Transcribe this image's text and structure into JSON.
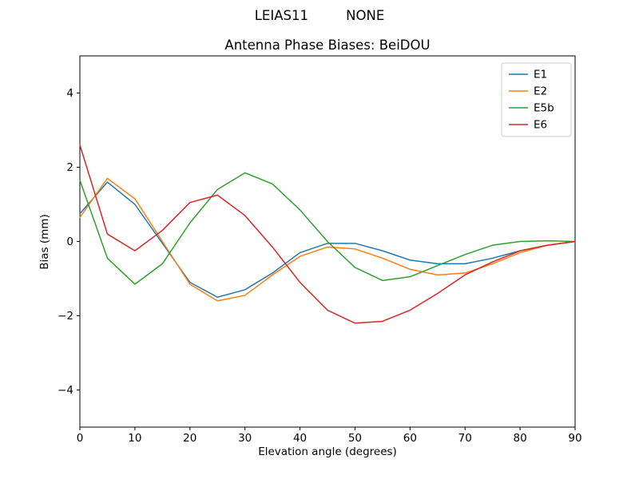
{
  "header": {
    "suptitle": "LEIAS11         NONE"
  },
  "chart_data": {
    "type": "line",
    "title": "Antenna Phase Biases: BeiDOU",
    "suptitle": "LEIAS11         NONE",
    "xlabel": "Elevation angle (degrees)",
    "ylabel": "Bias (mm)",
    "xlim": [
      0,
      90
    ],
    "ylim": [
      -5,
      5
    ],
    "xticks": [
      0,
      10,
      20,
      30,
      40,
      50,
      60,
      70,
      80,
      90
    ],
    "yticks": [
      -4,
      -2,
      0,
      2,
      4
    ],
    "grid": false,
    "legend_position": "upper right",
    "x": [
      0,
      5,
      10,
      15,
      20,
      25,
      30,
      35,
      40,
      45,
      50,
      55,
      60,
      65,
      70,
      75,
      80,
      85,
      90
    ],
    "series": [
      {
        "name": "E1",
        "color": "#1f77b4",
        "values": [
          0.75,
          1.6,
          1.0,
          -0.05,
          -1.1,
          -1.5,
          -1.3,
          -0.85,
          -0.3,
          -0.05,
          -0.05,
          -0.25,
          -0.5,
          -0.6,
          -0.6,
          -0.45,
          -0.25,
          -0.1,
          0.0
        ]
      },
      {
        "name": "E2",
        "color": "#ff7f0e",
        "values": [
          0.65,
          1.7,
          1.15,
          0.0,
          -1.15,
          -1.6,
          -1.45,
          -0.9,
          -0.4,
          -0.15,
          -0.2,
          -0.45,
          -0.75,
          -0.9,
          -0.85,
          -0.6,
          -0.3,
          -0.1,
          0.0
        ]
      },
      {
        "name": "E5b",
        "color": "#2ca02c",
        "values": [
          1.65,
          -0.45,
          -1.15,
          -0.6,
          0.5,
          1.4,
          1.85,
          1.55,
          0.85,
          0.0,
          -0.7,
          -1.05,
          -0.95,
          -0.65,
          -0.35,
          -0.1,
          0.0,
          0.02,
          0.0
        ]
      },
      {
        "name": "E6",
        "color": "#d62728",
        "values": [
          2.6,
          0.2,
          -0.25,
          0.3,
          1.05,
          1.25,
          0.7,
          -0.15,
          -1.1,
          -1.85,
          -2.2,
          -2.15,
          -1.85,
          -1.4,
          -0.9,
          -0.55,
          -0.25,
          -0.1,
          0.0
        ]
      }
    ]
  }
}
